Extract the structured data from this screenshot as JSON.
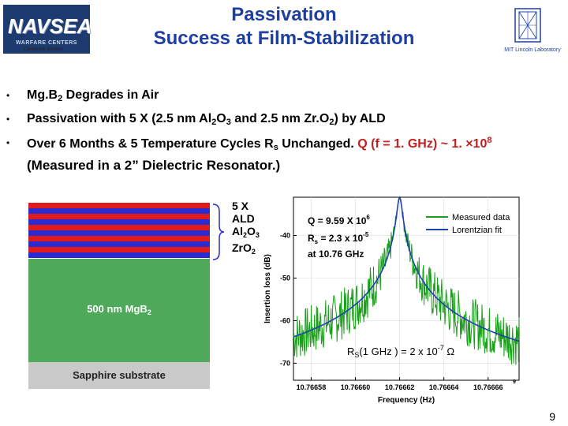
{
  "header": {
    "logo_word": "NAVSEA",
    "logo_sub": "WARFARE CENTERS",
    "logo_division": "Carderock Division",
    "title_line1": "Passivation",
    "title_line2": "Success at Film-Stabilization",
    "lab_label": "MIT Lincoln Laboratory"
  },
  "bullets": [
    {
      "pre": "Mg.B",
      "sub": "2",
      "post": " Degrades in Air"
    },
    {
      "t1": "Passivation with 5 X (2.5 nm Al",
      "s1": "2",
      "t2": "O",
      "s2": "3",
      "t3": " and 2.5 nm Zr.O",
      "s3": "2",
      "t4": ") by ALD"
    },
    {
      "t1": "Over 6 Months & 5 Temperature Cycles R",
      "s1": "s",
      "t2": " Unchanged. ",
      "q": "Q (f = 1. GHz) ~ 1. ",
      "times": "×",
      "exp_base": "10",
      "exp": "8",
      "line2": "(Measured in a 2” Dielectric Resonator.)"
    }
  ],
  "stack": {
    "label_lines": [
      "5 X",
      "ALD",
      "Al",
      "2",
      "O",
      "3",
      "ZrO",
      "2"
    ],
    "film_label_pre": "500 nm MgB",
    "film_label_sub": "2",
    "substrate_label": "Sapphire substrate",
    "colors": {
      "stripe_red": "#e01b1b",
      "stripe_blue": "#2b2bd0",
      "film": "#4fa95a",
      "substrate": "#c9c9c9"
    }
  },
  "chart_data": {
    "type": "line",
    "xlabel": "Frequency (Hz)",
    "ylabel": "Insertion loss (dB)",
    "x_tick_labels": [
      "10.76658",
      "10.76660",
      "10.76662",
      "10.76664",
      "10.76666"
    ],
    "x_exponent": "9",
    "x_ticks": [
      10.76658,
      10.7666,
      10.76662,
      10.76664,
      10.76666
    ],
    "xlim": [
      10.766572,
      10.766674
    ],
    "y_tick_labels": [
      "-40",
      "-50",
      "-60",
      "-70"
    ],
    "y_ticks": [
      -40,
      -50,
      -60,
      -70
    ],
    "ylim": [
      -74,
      -31
    ],
    "f0": 10.76662,
    "peak_db": -31,
    "legend": [
      {
        "name": "Measured data",
        "color": "#1aa01a"
      },
      {
        "name": "Lorentzian fit",
        "color": "#2040b0"
      }
    ],
    "legend_position": "top-right",
    "annotations": {
      "q": "Q = 9.59 X 10",
      "q_exp": "6",
      "rs": "R",
      "rs_sub": "s",
      "rs_val": " = 2.3 x 10",
      "rs_exp": "-5",
      "freq": "at 10.76 GHz",
      "bottom_pre": "R",
      "bottom_sub": "S",
      "bottom_mid": "(1 GHz ) = 2 x 10",
      "bottom_exp": "-7",
      "bottom_unit": " Ω"
    }
  },
  "page_number": "9"
}
